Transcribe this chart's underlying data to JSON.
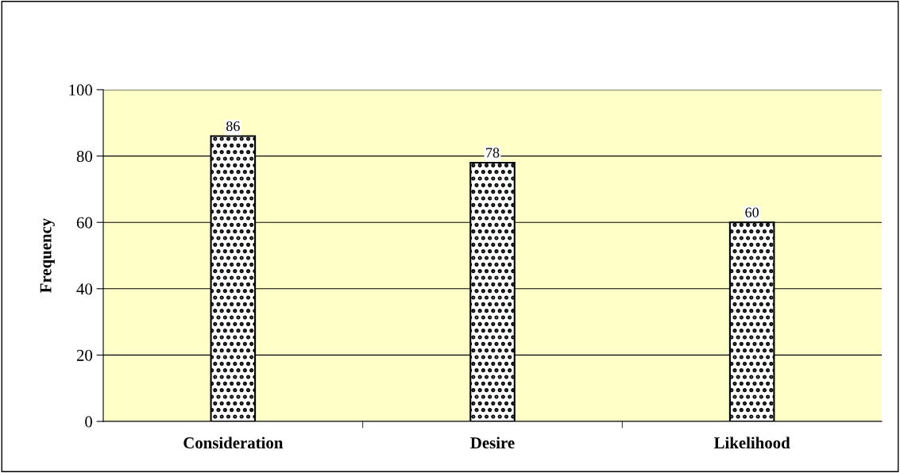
{
  "chart_data": {
    "type": "bar",
    "ylabel": "Frequency",
    "categories": [
      "Consideration",
      "Desire",
      "Likelihood"
    ],
    "values": [
      86,
      78,
      60
    ],
    "color": "#000000",
    "ylim": [
      0,
      100
    ],
    "yticks": [
      0,
      20,
      40,
      60,
      80,
      100
    ],
    "grid": "y",
    "data_labels": true
  }
}
